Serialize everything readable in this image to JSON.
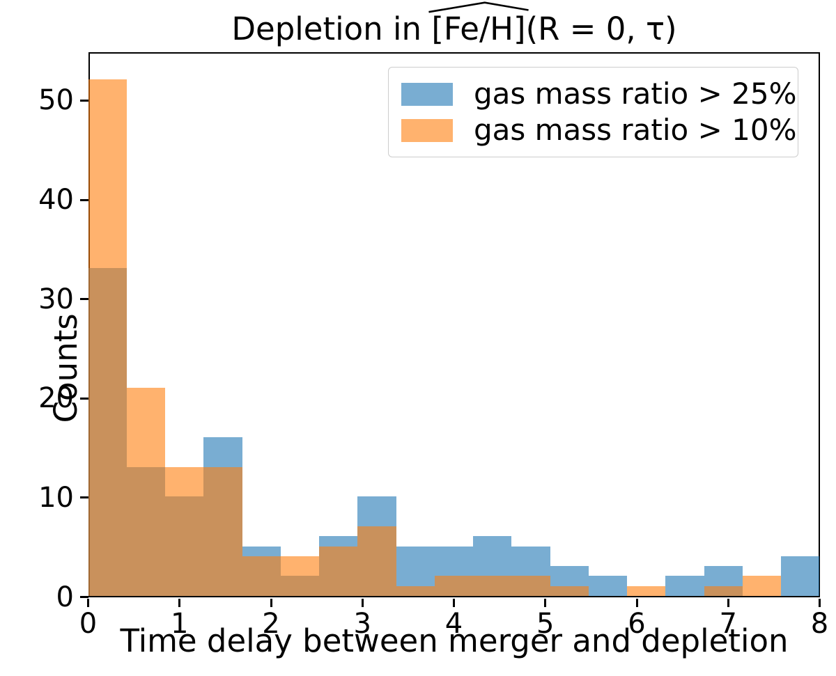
{
  "figure": {
    "background": "#ffffff",
    "title": {
      "prefix": "Depletion in ",
      "hat_text": "[Fe/H]",
      "suffix": "(R = 0, τ)",
      "accent": "widehat"
    },
    "xlabel": "Time delay between merger and depletion",
    "ylabel": "Counts"
  },
  "chart_data": {
    "type": "bar",
    "subtype": "overlaid-histogram",
    "title": "Depletion in ̂[Fe/H](R = 0, τ)",
    "xlabel": "Time delay between merger and depletion",
    "ylabel": "Counts",
    "xlim": [
      0,
      8
    ],
    "ylim": [
      0,
      54.9
    ],
    "xticks": [
      0,
      1,
      2,
      3,
      4,
      5,
      6,
      7,
      8
    ],
    "yticks": [
      0,
      10,
      20,
      30,
      40,
      50
    ],
    "grid": false,
    "bin_count": 19,
    "bin_range": [
      0,
      8
    ],
    "bin_edges": [
      0,
      0.4211,
      0.8421,
      1.2632,
      1.6842,
      2.1053,
      2.5263,
      2.9474,
      3.3684,
      3.7895,
      4.2105,
      4.6316,
      5.0526,
      5.4737,
      5.8947,
      6.3158,
      6.7368,
      7.1579,
      7.5789,
      8.0
    ],
    "series": [
      {
        "name": "gas mass ratio > 25%",
        "base_color": "#1f77b4",
        "alpha": 0.6,
        "fill": "rgba(31,119,180,0.6)",
        "counts": [
          33,
          13,
          10,
          16,
          5,
          2,
          6,
          10,
          5,
          5,
          6,
          5,
          3,
          2,
          0,
          2,
          3,
          0,
          4
        ]
      },
      {
        "name": "gas mass ratio > 10%",
        "base_color": "#ff7f0e",
        "alpha": 0.6,
        "fill": "rgba(255,127,14,0.6)",
        "counts": [
          52,
          21,
          13,
          13,
          4,
          4,
          5,
          7,
          1,
          2,
          2,
          2,
          1,
          0,
          1,
          0,
          1,
          2,
          0
        ]
      }
    ],
    "legend": {
      "position": "upper right",
      "entries": [
        "gas mass ratio > 25%",
        "gas mass ratio > 10%"
      ]
    }
  },
  "layout_colors": {
    "spine": "#000000",
    "legend_border": "#cccccc",
    "overlap_tint": "#c9925c"
  }
}
